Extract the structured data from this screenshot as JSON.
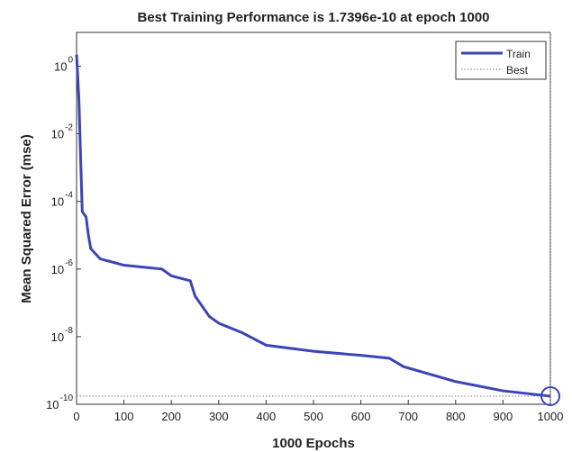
{
  "chart_data": {
    "type": "line",
    "title": "Best Training Performance is 1.7396e-10 at epoch 1000",
    "x_label": "1000 Epochs",
    "y_label": "Mean Squared Error  (mse)",
    "log_y": true,
    "xlim": [
      0,
      1000
    ],
    "xticks": [
      0,
      100,
      200,
      300,
      400,
      500,
      600,
      700,
      800,
      900,
      1000
    ],
    "ylim": [
      1e-10,
      10
    ],
    "yticks": [
      {
        "value": 1,
        "label": "10",
        "exponent": "0"
      },
      {
        "value": 0.01,
        "label": "10",
        "exponent": "-2"
      },
      {
        "value": 0.0001,
        "label": "10",
        "exponent": "-4"
      },
      {
        "value": 1e-06,
        "label": "10",
        "exponent": "-6"
      },
      {
        "value": 1e-08,
        "label": "10",
        "exponent": "-8"
      },
      {
        "value": 1e-10,
        "label": "10",
        "exponent": "-10"
      }
    ],
    "legend": "top-right",
    "series": [
      {
        "name": "Train",
        "color": "#3a45b8",
        "x": [
          0,
          5,
          10,
          12,
          20,
          25,
          30,
          50,
          100,
          180,
          200,
          240,
          250,
          280,
          300,
          350,
          400,
          500,
          600,
          660,
          690,
          800,
          900,
          1000
        ],
        "values": [
          2.2,
          0.1,
          0.0004,
          5e-05,
          3.5e-05,
          1e-05,
          4e-06,
          2e-06,
          1.3e-06,
          1e-06,
          6.3e-07,
          4.5e-07,
          1.6e-07,
          4e-08,
          2.5e-08,
          1.3e-08,
          5.6e-09,
          3.7e-09,
          2.8e-09,
          2.3e-09,
          1.3e-09,
          4.7e-10,
          2.5e-10,
          1.7396e-10
        ]
      },
      {
        "name": "Best",
        "color": "#777777",
        "style": "dotted"
      }
    ],
    "best": {
      "x": 1000,
      "y": 1.7396e-10
    }
  }
}
